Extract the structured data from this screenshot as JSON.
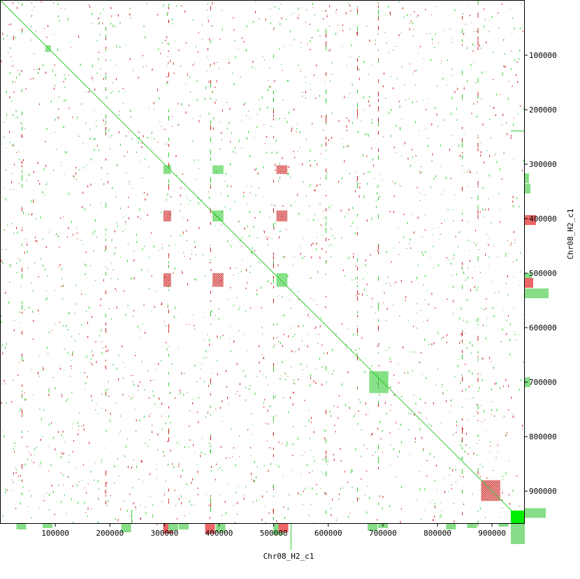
{
  "chart_data": {
    "type": "scatter",
    "title": "",
    "xlabel": "Chr08_H2_c1",
    "ylabel": "Chr08_H2_c1",
    "xlim": [
      0,
      960000
    ],
    "ylim": [
      0,
      960000
    ],
    "y_inverted": true,
    "x_ticks": [
      100000,
      200000,
      300000,
      400000,
      500000,
      600000,
      700000,
      800000,
      900000
    ],
    "x_tick_labels": [
      "100000",
      "200000",
      "300000",
      "400000",
      "500000",
      "600000",
      "700000",
      "800000",
      "900000"
    ],
    "y_ticks": [
      100000,
      200000,
      300000,
      400000,
      500000,
      600000,
      700000,
      800000,
      900000
    ],
    "y_tick_labels": [
      "100000",
      "200000",
      "300000",
      "400000",
      "500000",
      "600000",
      "700000",
      "800000",
      "900000"
    ],
    "grid": false,
    "legend": "none",
    "colors": {
      "forward": "#33cc33",
      "reverse": "#cc2222",
      "marginal_forward": "#88dd88",
      "marginal_reverse": "#ee6666",
      "axis": "#000000"
    },
    "series": [
      {
        "orientation": "forward",
        "values": [
          {
            "x": 0,
            "y": 0
          },
          {
            "x": 960000,
            "y": 960000
          }
        ]
      }
    ],
    "blocks": [
      {
        "orientation": "forward",
        "x": [
          298000,
          312000
        ],
        "y": [
          302000,
          318000
        ]
      },
      {
        "orientation": "forward",
        "x": [
          388000,
          408000
        ],
        "y": [
          385000,
          405000
        ]
      },
      {
        "orientation": "forward",
        "x": [
          505000,
          525000
        ],
        "y": [
          500000,
          525000
        ]
      },
      {
        "orientation": "forward",
        "x": [
          675000,
          710000
        ],
        "y": [
          680000,
          720000
        ]
      },
      {
        "orientation": "forward",
        "x": [
          82000,
          92000
        ],
        "y": [
          82000,
          94000
        ]
      },
      {
        "orientation": "forward",
        "x": [
          388000,
          408000
        ],
        "y": [
          302000,
          318000
        ]
      },
      {
        "orientation": "reverse",
        "x": [
          505000,
          525000
        ],
        "y": [
          302000,
          318000
        ]
      },
      {
        "orientation": "reverse",
        "x": [
          298000,
          312000
        ],
        "y": [
          385000,
          405000
        ]
      },
      {
        "orientation": "reverse",
        "x": [
          505000,
          525000
        ],
        "y": [
          385000,
          405000
        ]
      },
      {
        "orientation": "reverse",
        "x": [
          298000,
          312000
        ],
        "y": [
          500000,
          525000
        ]
      },
      {
        "orientation": "reverse",
        "x": [
          388000,
          408000
        ],
        "y": [
          500000,
          525000
        ]
      },
      {
        "orientation": "reverse",
        "x": [
          880000,
          915000
        ],
        "y": [
          880000,
          918000
        ]
      }
    ]
  }
}
